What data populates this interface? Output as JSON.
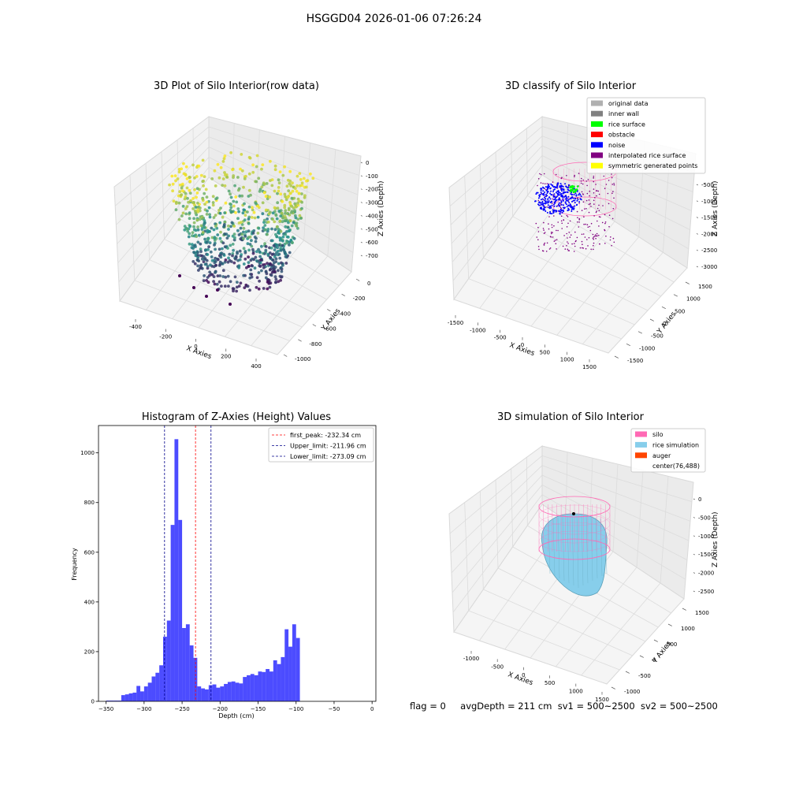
{
  "suptitle": "HSGGD04 2026-01-06 07:26:24",
  "panels": {
    "raw": {
      "title": "3D Plot of Silo Interior(row data)",
      "xlabel": "X Axies",
      "ylabel": "Y Axies",
      "zlabel": "Z Axies (Depth)",
      "x_ticks": [
        "-400",
        "-200",
        "0",
        "200",
        "400"
      ],
      "y_ticks": [
        "0",
        "-200",
        "-400",
        "-600",
        "-800",
        "-1000"
      ],
      "z_ticks": [
        "0",
        "-100",
        "-200",
        "-300",
        "-400",
        "-500",
        "-600",
        "-700"
      ],
      "colormap": "viridis",
      "colors": {
        "low": "#440154",
        "mid": "#21918c",
        "high": "#fde725"
      }
    },
    "classify": {
      "title": "3D classify of Silo Interior",
      "xlabel": "X Axies",
      "ylabel": "Y Axies",
      "zlabel": "Z Axies (Depth)",
      "x_ticks": [
        "-1500",
        "-1000",
        "-500",
        "0",
        "500",
        "1000",
        "1500"
      ],
      "y_ticks": [
        "1500",
        "1000",
        "500",
        "0",
        "-500",
        "-1000",
        "-1500"
      ],
      "z_ticks": [
        "-500",
        "-1000",
        "-1500",
        "-2000",
        "-2500",
        "-3000"
      ],
      "legend": [
        {
          "label": "original data",
          "color": "#b0b0b0"
        },
        {
          "label": "inner wall",
          "color": "#808080"
        },
        {
          "label": "rice surface",
          "color": "#00ff00"
        },
        {
          "label": "obstacle",
          "color": "#ff0000"
        },
        {
          "label": "noise",
          "color": "#0000ff"
        },
        {
          "label": "interpolated rice surface",
          "color": "#800080"
        },
        {
          "label": "symmetric generated points",
          "color": "#ffff00"
        }
      ]
    },
    "simulation": {
      "title": "3D simulation of Silo Interior",
      "xlabel": "X Axies",
      "ylabel": "Y Axies",
      "zlabel": "Z Axies (Depth)",
      "x_ticks": [
        "-1000",
        "-500",
        "0",
        "500",
        "1000",
        "1500"
      ],
      "y_ticks": [
        "1500",
        "1000",
        "500",
        "0",
        "-500",
        "-1000"
      ],
      "z_ticks": [
        "0",
        "-500",
        "-1000",
        "-1500",
        "-2000",
        "-2500"
      ],
      "legend": [
        {
          "label": "silo",
          "color": "#ff69b4"
        },
        {
          "label": "rice simulation",
          "color": "#87ceeb"
        },
        {
          "label": "auger",
          "color": "#ff4500"
        },
        {
          "label": "center(76,488)",
          "color": ""
        }
      ]
    }
  },
  "status": {
    "flag": "flag = 0",
    "avg_depth": "avgDepth = 211 cm",
    "sv1": "sv1 = 500~2500",
    "sv2": "sv2 = 500~2500"
  },
  "chart_data": [
    {
      "type": "histogram",
      "title": "Histogram of Z-Axies (Height) Values",
      "xlabel": "Depth (cm)",
      "ylabel": "Frequency",
      "xlim": [
        -360,
        5
      ],
      "ylim": [
        0,
        1110
      ],
      "x_ticks": [
        -350,
        -300,
        -250,
        -200,
        -150,
        -100,
        -50,
        0
      ],
      "y_ticks": [
        0,
        200,
        400,
        600,
        800,
        1000
      ],
      "bar_color": "#0000ff",
      "bin_width": 5,
      "bin_start": -350,
      "values": [
        3,
        3,
        3,
        3,
        25,
        28,
        32,
        35,
        62,
        40,
        60,
        75,
        100,
        115,
        145,
        260,
        325,
        710,
        1055,
        730,
        295,
        310,
        225,
        175,
        60,
        52,
        48,
        65,
        68,
        55,
        60,
        70,
        78,
        80,
        75,
        72,
        98,
        105,
        110,
        105,
        120,
        118,
        130,
        120,
        165,
        150,
        178,
        290,
        220,
        310,
        255
      ],
      "vlines": [
        {
          "label": "first_peak: -232.34 cm",
          "x": -232.34,
          "color": "#ff0000"
        },
        {
          "label": "Upper_limit: -211.96 cm",
          "x": -211.96,
          "color": "#00008b"
        },
        {
          "label": "Lower_limit: -273.09 cm",
          "x": -273.09,
          "color": "#00008b"
        }
      ],
      "legend_position": "upper right"
    }
  ]
}
